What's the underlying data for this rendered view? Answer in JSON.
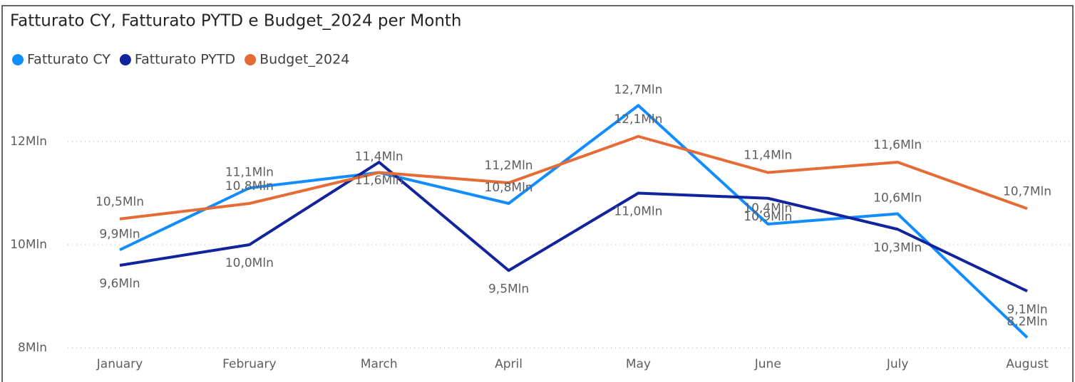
{
  "chart_data": {
    "type": "line",
    "title": "Fatturato CY, Fatturato PYTD e Budget_2024 per Month",
    "categories": [
      "January",
      "February",
      "March",
      "April",
      "May",
      "June",
      "July",
      "August"
    ],
    "series": [
      {
        "name": "Fatturato CY",
        "color": "#118DFF",
        "values": [
          9.9,
          11.1,
          11.4,
          10.8,
          12.7,
          10.4,
          10.6,
          8.2
        ],
        "value_labels": [
          "9,9Mln",
          "11,1Mln",
          "11,4Mln",
          "10,8Mln",
          "12,7Mln",
          "10,4Mln",
          "10,6Mln",
          "8,2Mln"
        ]
      },
      {
        "name": "Fatturato PYTD",
        "color": "#12239E",
        "values": [
          9.6,
          10.0,
          11.6,
          9.5,
          11.0,
          10.9,
          10.3,
          9.1
        ],
        "value_labels": [
          "9,6Mln",
          "10,0Mln",
          "11,6Mln",
          "9,5Mln",
          "11,0Mln",
          "10,9Mln",
          "10,3Mln",
          "9,1Mln"
        ]
      },
      {
        "name": "Budget_2024",
        "color": "#E66C37",
        "values": [
          10.5,
          10.8,
          11.4,
          11.2,
          12.1,
          11.4,
          11.6,
          10.7
        ],
        "value_labels": [
          "10,5Mln",
          "10,8Mln",
          null,
          "11,2Mln",
          "12,1Mln",
          "11,4Mln",
          "11,6Mln",
          "10,7Mln"
        ]
      }
    ],
    "ylim": [
      8,
      13
    ],
    "yticks": [
      {
        "value": 8,
        "label": "8Mln"
      },
      {
        "value": 10,
        "label": "10Mln"
      },
      {
        "value": 12,
        "label": "12Mln"
      }
    ],
    "grid": true,
    "legend": "top-left"
  }
}
